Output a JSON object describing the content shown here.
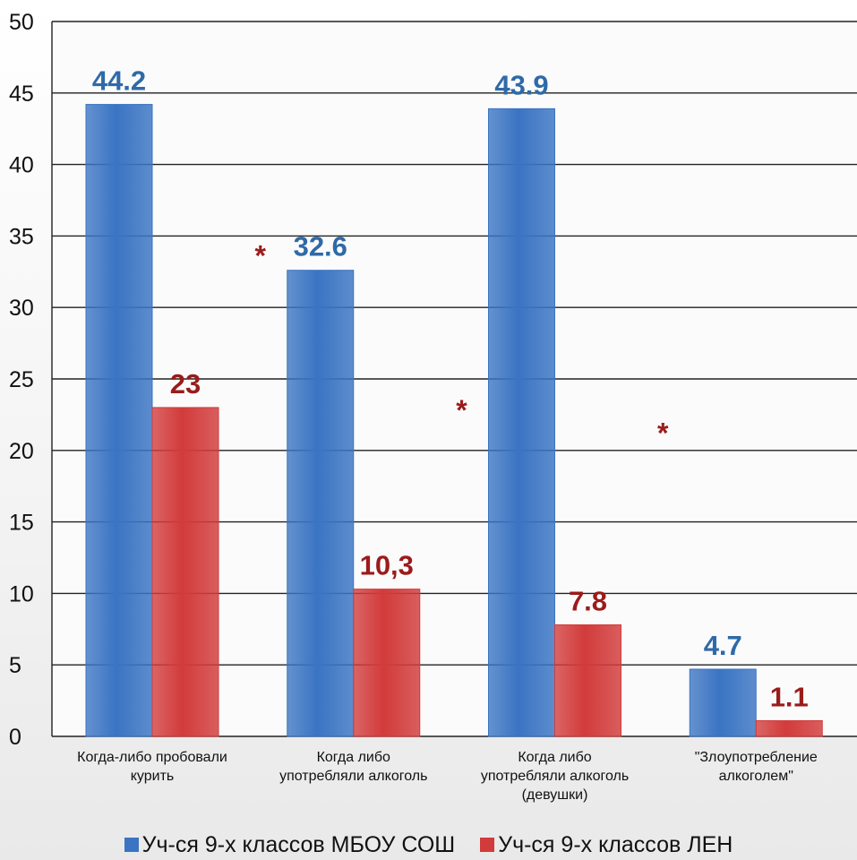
{
  "chart_data": {
    "type": "bar",
    "categories": [
      [
        "Когда-либо пробовали",
        "курить"
      ],
      [
        "Когда либо",
        "употребляли алкоголь"
      ],
      [
        "Когда либо",
        "употребляли алкоголь",
        "(девушки)"
      ],
      [
        "\"Злоупотребление",
        "алкоголем\""
      ]
    ],
    "series": [
      {
        "name": "Уч-ся 9-х классов МБОУ СОШ",
        "color": "#3a74c3",
        "label_color": "#2f6aa8",
        "values": [
          44.2,
          32.6,
          43.9,
          4.7
        ],
        "labels": [
          "44.2",
          "32.6",
          "43.9",
          "4.7"
        ]
      },
      {
        "name": "Уч-ся 9-х классов ЛЕН",
        "color": "#d23b3b",
        "label_color": "#9b1b1b",
        "values": [
          23,
          10.3,
          7.8,
          1.1
        ],
        "labels": [
          "23",
          "10,3",
          "7.8",
          "1.1"
        ]
      }
    ],
    "yticks": [
      "0",
      "5",
      "10",
      "15",
      "20",
      "25",
      "30",
      "35",
      "40",
      "45",
      "50"
    ],
    "ylim": [
      0,
      50
    ],
    "grid": true,
    "legend_position": "bottom",
    "annotations": [
      {
        "text": "*",
        "category_index": 1,
        "value": 33.8,
        "color": "#9b1b1b"
      },
      {
        "text": "*",
        "category_index": 2,
        "value": 23.0,
        "color": "#9b1b1b"
      },
      {
        "text": "*",
        "category_index": 3,
        "value": 21.4,
        "color": "#9b1b1b"
      }
    ]
  }
}
